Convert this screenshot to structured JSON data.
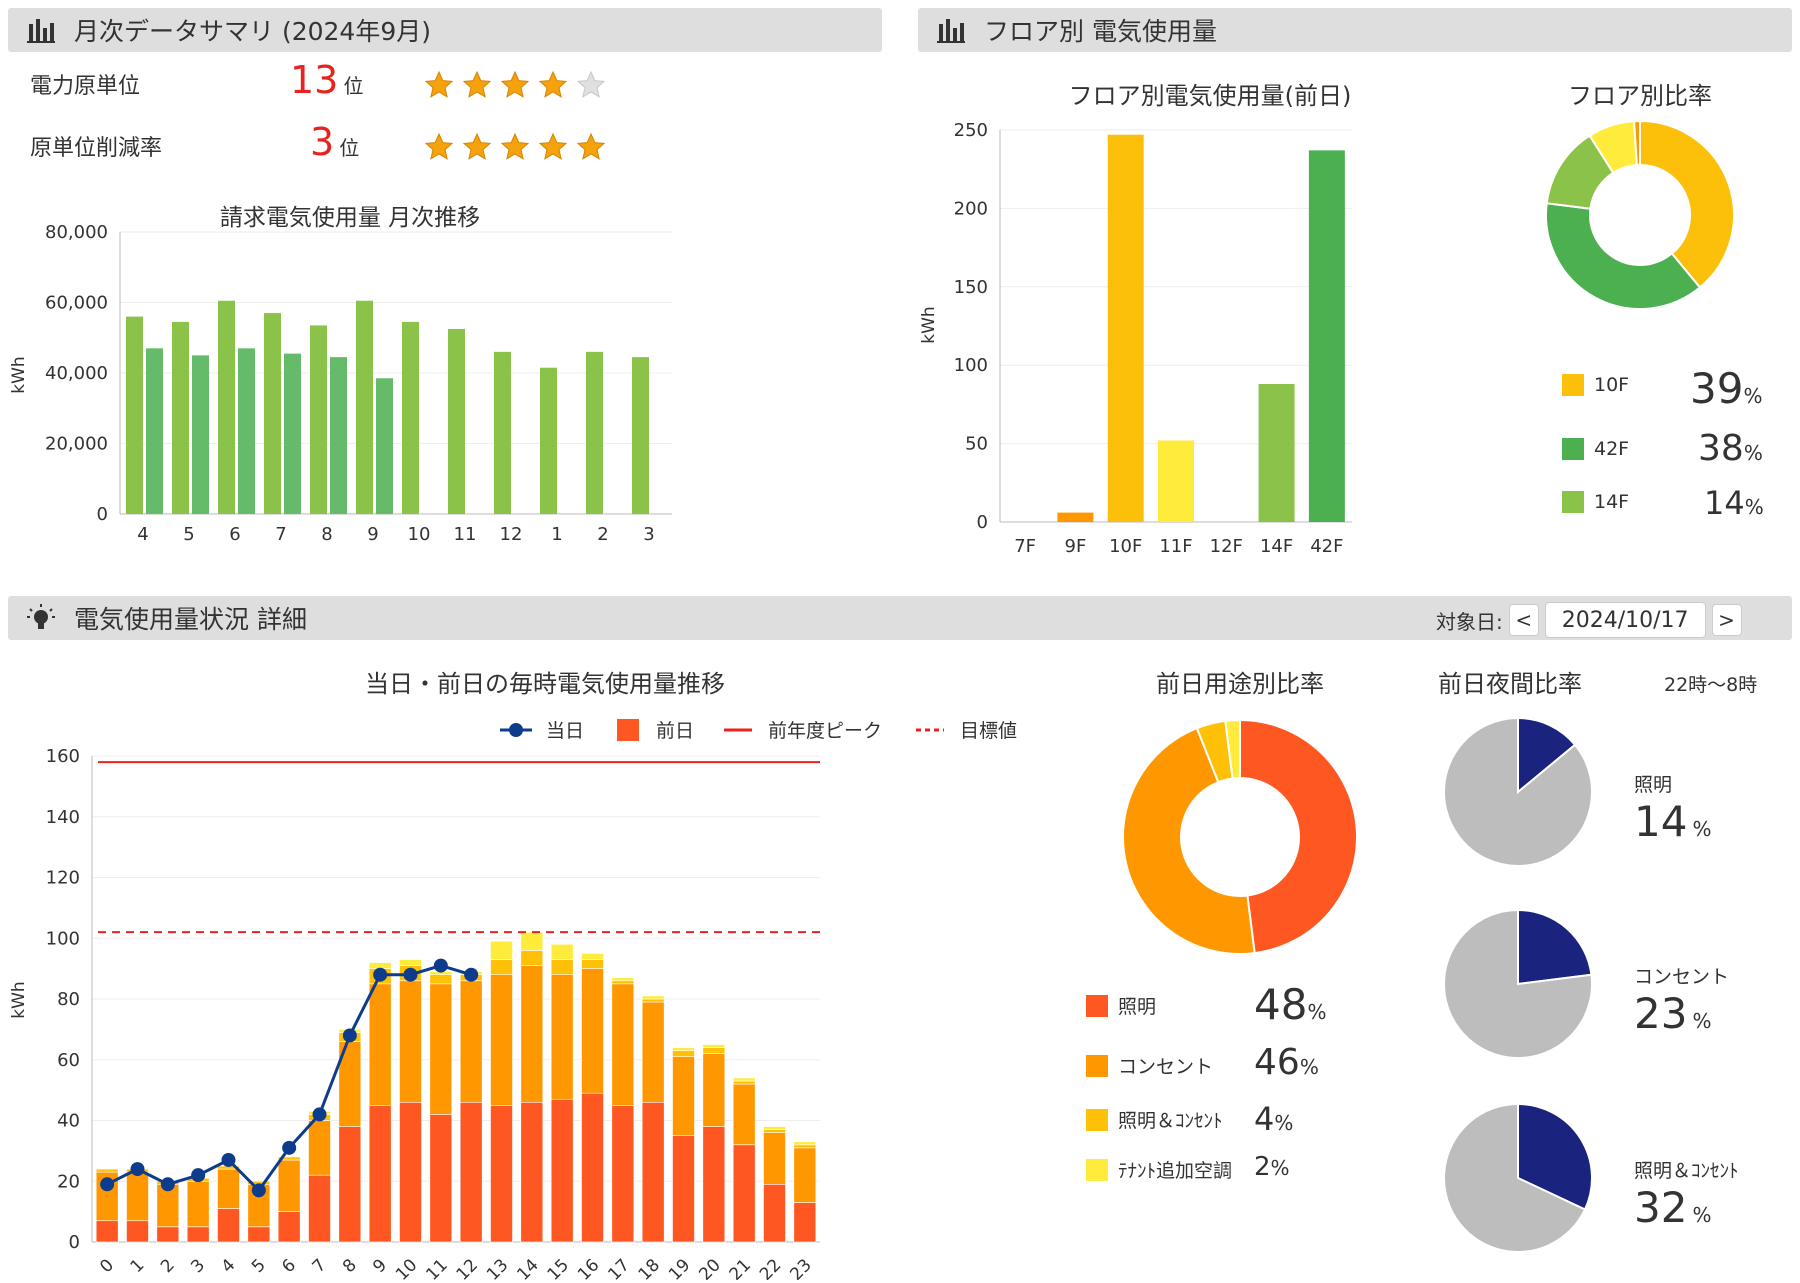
{
  "monthly_summary": {
    "title": "月次データサマリ (2024年9月)",
    "icon": "bar-chart-icon",
    "rows": [
      {
        "label": "電力原単位",
        "rank": "13",
        "rank_unit": "位",
        "stars": 4,
        "max_stars": 5
      },
      {
        "label": "原単位削減率",
        "rank": "3",
        "rank_unit": "位",
        "stars": 5,
        "max_stars": 5
      }
    ]
  },
  "floor_usage": {
    "title": "フロア別 電気使用量",
    "icon": "bar-chart-icon"
  },
  "detail": {
    "title": "電気使用量状況 詳細",
    "icon": "lightbulb-icon",
    "date_label": "対象日:",
    "date_value": "2024/10/17",
    "prev_button": "<",
    "next_button": ">"
  },
  "floor_ratio_legend": [
    {
      "name": "10F",
      "pct": "39",
      "unit": "%",
      "color": "#fcbf0a"
    },
    {
      "name": "42F",
      "pct": "38",
      "unit": "%",
      "color": "#4caf50"
    },
    {
      "name": "14F",
      "pct": "14",
      "unit": "%",
      "color": "#8bc34a"
    }
  ],
  "usage_ratio_legend": [
    {
      "name": "照明",
      "pct": "48",
      "unit": "%",
      "color": "#ff5722"
    },
    {
      "name": "コンセント",
      "pct": "46",
      "unit": "%",
      "color": "#ff9800"
    },
    {
      "name": "照明＆ｺﾝｾﾝﾄ",
      "pct": "4",
      "unit": "%",
      "color": "#ffc107"
    },
    {
      "name": "ﾃﾅﾝﾄ追加空調",
      "pct": "2",
      "unit": "%",
      "color": "#ffeb3b"
    }
  ],
  "night_ratio": {
    "title": "前日夜間比率",
    "subtitle": "22時～8時",
    "items": [
      {
        "name": "照明",
        "pct": "14",
        "unit": "%",
        "value": 14
      },
      {
        "name": "コンセント",
        "pct": "23",
        "unit": "%",
        "value": 23
      },
      {
        "name": "照明＆ｺﾝｾﾝﾄ",
        "pct": "32",
        "unit": "%",
        "value": 32
      }
    ],
    "colors": {
      "night": "#1a237e",
      "rest": "#bdbdbd"
    }
  },
  "chart_data": [
    {
      "id": "monthly",
      "type": "bar",
      "title": "請求電気使用量 月次推移",
      "ylabel": "kWh",
      "ylim": [
        0,
        80000
      ],
      "yticks": [
        "0",
        "20,000",
        "40,000",
        "60,000",
        "80,000"
      ],
      "categories": [
        "4",
        "5",
        "6",
        "7",
        "8",
        "9",
        "10",
        "11",
        "12",
        "1",
        "2",
        "3"
      ],
      "series": [
        {
          "values": [
            56000,
            54500,
            60500,
            57000,
            53500,
            60500,
            54500,
            52500,
            46000,
            41500,
            46000,
            44500
          ],
          "color": "#8bc34a"
        },
        {
          "values": [
            47000,
            45000,
            47000,
            45500,
            44500,
            38500,
            null,
            null,
            null,
            null,
            null,
            null
          ],
          "color": "#66bb6a"
        }
      ]
    },
    {
      "id": "floor",
      "type": "bar",
      "title": "フロア別電気使用量(前日)",
      "ylabel": "kWh",
      "ylim": [
        0,
        250
      ],
      "yticks": [
        "0",
        "50",
        "100",
        "150",
        "200",
        "250"
      ],
      "categories": [
        "7F",
        "9F",
        "10F",
        "11F",
        "12F",
        "14F",
        "42F"
      ],
      "values": [
        0,
        6,
        247,
        52,
        0,
        88,
        237
      ],
      "colors": [
        "#ff9800",
        "#ff9800",
        "#fcbf0a",
        "#ffeb3b",
        "#ffeb3b",
        "#8bc34a",
        "#4caf50"
      ]
    },
    {
      "id": "floor_ratio",
      "type": "pie",
      "title": "フロア別比率",
      "slices": [
        {
          "label": "10F",
          "value": 39,
          "color": "#fcbf0a"
        },
        {
          "label": "42F",
          "value": 38,
          "color": "#4caf50"
        },
        {
          "label": "14F",
          "value": 14,
          "color": "#8bc34a"
        },
        {
          "label": "11F",
          "value": 8,
          "color": "#ffeb3b"
        },
        {
          "label": "9F",
          "value": 1,
          "color": "#ff9800"
        }
      ]
    },
    {
      "id": "hourly",
      "type": "bar",
      "title": "当日・前日の毎時電気使用量推移",
      "ylabel": "kWh",
      "ylim": [
        0,
        160
      ],
      "yticks": [
        "0",
        "20",
        "40",
        "60",
        "80",
        "100",
        "120",
        "140",
        "160"
      ],
      "categories": [
        "0",
        "1",
        "2",
        "3",
        "4",
        "5",
        "6",
        "7",
        "8",
        "9",
        "10",
        "11",
        "12",
        "13",
        "14",
        "15",
        "16",
        "17",
        "18",
        "19",
        "20",
        "21",
        "22",
        "23"
      ],
      "legend": [
        "当日",
        "前日",
        "前年度ピーク",
        "目標値"
      ],
      "peak": 158,
      "target": 102,
      "stack_colors": [
        "#ff5722",
        "#ff9800",
        "#ffc107",
        "#ffeb3b"
      ],
      "stacks": [
        [
          7,
          7,
          5,
          5,
          11,
          5,
          10,
          22,
          38,
          45,
          46,
          42,
          46,
          45,
          46,
          47,
          49,
          45,
          46,
          35,
          38,
          32,
          19,
          13
        ],
        [
          16,
          16,
          14,
          15,
          13,
          14,
          17,
          18,
          28,
          40,
          40,
          43,
          40,
          43,
          45,
          41,
          41,
          40,
          33,
          26,
          24,
          20,
          17,
          18
        ],
        [
          1,
          1,
          1,
          1,
          1,
          1,
          1,
          2,
          3,
          5,
          5,
          3,
          2,
          5,
          5,
          5,
          3,
          1,
          1,
          2,
          2,
          1,
          1,
          1
        ],
        [
          0,
          0,
          0,
          0,
          0,
          0,
          0,
          1,
          1,
          2,
          2,
          1,
          1,
          6,
          6,
          5,
          2,
          1,
          1,
          1,
          1,
          1,
          1,
          1
        ]
      ],
      "today": [
        19,
        24,
        19,
        22,
        27,
        17,
        31,
        42,
        68,
        88,
        88,
        91,
        88
      ]
    },
    {
      "id": "usage_ratio",
      "type": "pie",
      "title": "前日用途別比率",
      "slices": [
        {
          "label": "照明",
          "value": 48,
          "color": "#ff5722"
        },
        {
          "label": "コンセント",
          "value": 46,
          "color": "#ff9800"
        },
        {
          "label": "照明＆ｺﾝｾﾝﾄ",
          "value": 4,
          "color": "#ffc107"
        },
        {
          "label": "ﾃﾅﾝﾄ追加空調",
          "value": 2,
          "color": "#ffeb3b"
        }
      ]
    }
  ]
}
